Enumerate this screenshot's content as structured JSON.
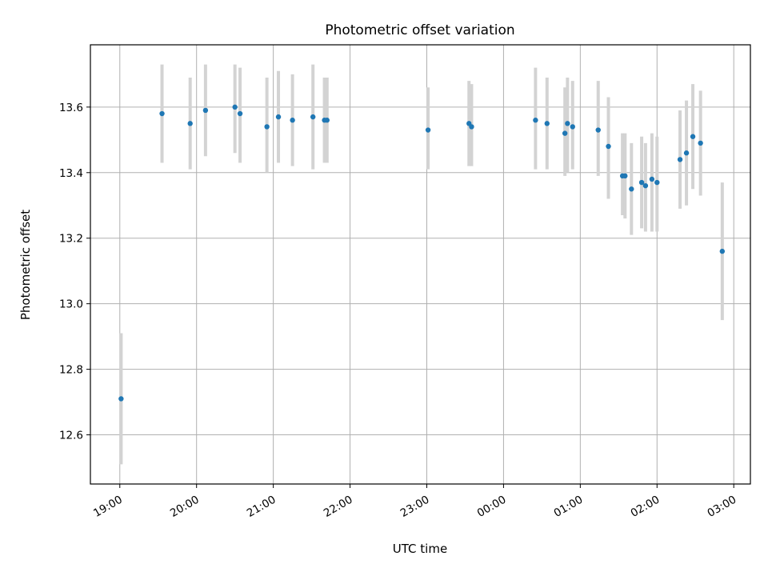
{
  "chart_data": {
    "type": "scatter",
    "title": "Photometric offset variation",
    "xlabel": "UTC time",
    "ylabel": "Photometric offset",
    "x_axis": {
      "kind": "time",
      "range": [
        "18:37",
        "03:13"
      ],
      "ticks": [
        "19:00",
        "20:00",
        "21:00",
        "22:00",
        "23:00",
        "00:00",
        "01:00",
        "02:00",
        "03:00"
      ]
    },
    "y_axis": {
      "range": [
        12.45,
        13.79
      ],
      "ticks": [
        12.6,
        12.8,
        13.0,
        13.2,
        13.4,
        13.6
      ],
      "tick_labels": [
        "12.6",
        "12.8",
        "13.0",
        "13.2",
        "13.4",
        "13.6"
      ]
    },
    "grid": true,
    "marker_color": "#1f77b4",
    "errorbar_color": "#d3d3d3",
    "points": [
      {
        "t": "19:01",
        "y": 12.71,
        "lo": 12.51,
        "hi": 12.91
      },
      {
        "t": "19:33",
        "y": 13.58,
        "lo": 13.43,
        "hi": 13.73
      },
      {
        "t": "19:55",
        "y": 13.55,
        "lo": 13.41,
        "hi": 13.69
      },
      {
        "t": "20:07",
        "y": 13.59,
        "lo": 13.45,
        "hi": 13.73
      },
      {
        "t": "20:30",
        "y": 13.6,
        "lo": 13.46,
        "hi": 13.73
      },
      {
        "t": "20:34",
        "y": 13.58,
        "lo": 13.43,
        "hi": 13.72
      },
      {
        "t": "20:55",
        "y": 13.54,
        "lo": 13.4,
        "hi": 13.69
      },
      {
        "t": "21:04",
        "y": 13.57,
        "lo": 13.43,
        "hi": 13.71
      },
      {
        "t": "21:15",
        "y": 13.56,
        "lo": 13.42,
        "hi": 13.7
      },
      {
        "t": "21:31",
        "y": 13.57,
        "lo": 13.41,
        "hi": 13.73
      },
      {
        "t": "21:40",
        "y": 13.56,
        "lo": 13.43,
        "hi": 13.69
      },
      {
        "t": "21:42",
        "y": 13.56,
        "lo": 13.43,
        "hi": 13.69
      },
      {
        "t": "23:01",
        "y": 13.53,
        "lo": 13.41,
        "hi": 13.66
      },
      {
        "t": "23:33",
        "y": 13.55,
        "lo": 13.42,
        "hi": 13.68
      },
      {
        "t": "23:35",
        "y": 13.54,
        "lo": 13.42,
        "hi": 13.67
      },
      {
        "t": "00:25",
        "y": 13.56,
        "lo": 13.41,
        "hi": 13.72
      },
      {
        "t": "00:34",
        "y": 13.55,
        "lo": 13.41,
        "hi": 13.69
      },
      {
        "t": "00:48",
        "y": 13.52,
        "lo": 13.39,
        "hi": 13.66
      },
      {
        "t": "00:50",
        "y": 13.55,
        "lo": 13.4,
        "hi": 13.69
      },
      {
        "t": "00:54",
        "y": 13.54,
        "lo": 13.41,
        "hi": 13.68
      },
      {
        "t": "01:14",
        "y": 13.53,
        "lo": 13.39,
        "hi": 13.68
      },
      {
        "t": "01:22",
        "y": 13.48,
        "lo": 13.32,
        "hi": 13.63
      },
      {
        "t": "01:33",
        "y": 13.39,
        "lo": 13.27,
        "hi": 13.52
      },
      {
        "t": "01:35",
        "y": 13.39,
        "lo": 13.26,
        "hi": 13.52
      },
      {
        "t": "01:40",
        "y": 13.35,
        "lo": 13.21,
        "hi": 13.49
      },
      {
        "t": "01:48",
        "y": 13.37,
        "lo": 13.23,
        "hi": 13.51
      },
      {
        "t": "01:51",
        "y": 13.36,
        "lo": 13.22,
        "hi": 13.49
      },
      {
        "t": "01:56",
        "y": 13.38,
        "lo": 13.22,
        "hi": 13.52
      },
      {
        "t": "02:00",
        "y": 13.37,
        "lo": 13.22,
        "hi": 13.51
      },
      {
        "t": "02:18",
        "y": 13.44,
        "lo": 13.29,
        "hi": 13.59
      },
      {
        "t": "02:23",
        "y": 13.46,
        "lo": 13.3,
        "hi": 13.62
      },
      {
        "t": "02:28",
        "y": 13.51,
        "lo": 13.35,
        "hi": 13.67
      },
      {
        "t": "02:34",
        "y": 13.49,
        "lo": 13.33,
        "hi": 13.65
      },
      {
        "t": "02:51",
        "y": 13.16,
        "lo": 12.95,
        "hi": 13.37
      }
    ]
  }
}
